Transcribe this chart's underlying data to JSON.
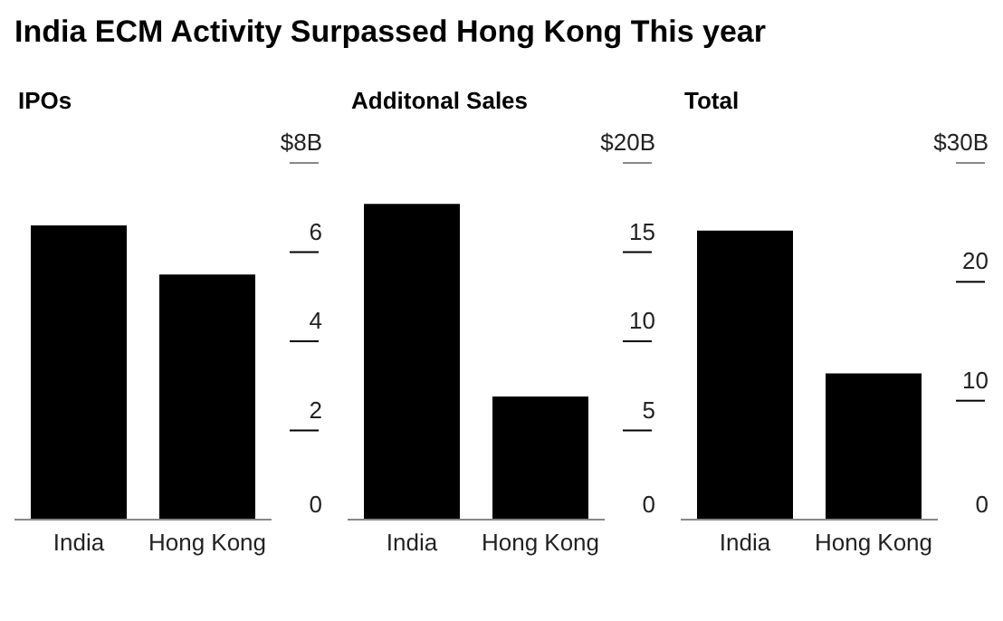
{
  "chart_data": [
    {
      "type": "bar",
      "title": "India ECM Activity Surpassed Hong Kong This year",
      "subtitle": "IPOs",
      "categories": [
        "India",
        "Hong Kong"
      ],
      "values": [
        6.6,
        5.5
      ],
      "color": "#000000",
      "ylim": [
        0,
        8
      ],
      "yticks": [
        0,
        2,
        4,
        6,
        {
          "value": 8,
          "label": "$8B"
        }
      ],
      "grid": false
    },
    {
      "type": "bar",
      "subtitle": "Additonal Sales",
      "categories": [
        "India",
        "Hong Kong"
      ],
      "values": [
        17.7,
        6.9
      ],
      "color": "#000000",
      "ylim": [
        0,
        20
      ],
      "yticks": [
        0,
        5,
        10,
        15,
        {
          "value": 20,
          "label": "$20B"
        }
      ],
      "grid": false
    },
    {
      "type": "bar",
      "subtitle": "Total",
      "categories": [
        "India",
        "Hong Kong"
      ],
      "values": [
        24.3,
        12.3
      ],
      "color": "#000000",
      "ylim": [
        0,
        30
      ],
      "yticks": [
        0,
        10,
        20,
        {
          "value": 30,
          "label": "$30B"
        }
      ],
      "grid": false
    }
  ]
}
